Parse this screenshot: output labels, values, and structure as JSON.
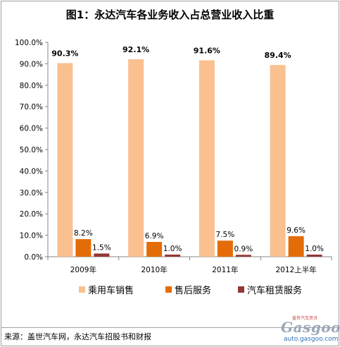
{
  "title": "图1：永达汽车各业务收入占总营业收入比重",
  "source": "来源：盖世汽车网，永达汽车招股书和财报",
  "logo": {
    "text": "Gasgoo",
    "url_text": "auto.gasgoo.com",
    "top_text": "盖世汽车资讯"
  },
  "chart_data": {
    "type": "bar",
    "categories": [
      "2009年",
      "2010年",
      "2011年",
      "2012上半年"
    ],
    "series": [
      {
        "name": "乘用车销售",
        "values": [
          90.3,
          92.1,
          91.6,
          89.4
        ],
        "color": "#fac090",
        "labels": [
          "90.3%",
          "92.1%",
          "91.6%",
          "89.4%"
        ]
      },
      {
        "name": "售后服务",
        "values": [
          8.2,
          6.9,
          7.5,
          9.6
        ],
        "color": "#e36c09",
        "labels": [
          "8.2%",
          "6.9%",
          "7.5%",
          "9.6%"
        ]
      },
      {
        "name": "汽车租赁服务",
        "values": [
          1.5,
          1.0,
          0.9,
          1.0
        ],
        "color": "#953735",
        "labels": [
          "1.5%",
          "1.0%",
          "0.9%",
          "1.0%"
        ]
      }
    ],
    "ylim": [
      0,
      100
    ],
    "yticks": [
      "0.0%",
      "10.0%",
      "20.0%",
      "30.0%",
      "40.0%",
      "50.0%",
      "60.0%",
      "70.0%",
      "80.0%",
      "90.0%",
      "100.0%"
    ],
    "grid": false,
    "legend": "bottom"
  }
}
